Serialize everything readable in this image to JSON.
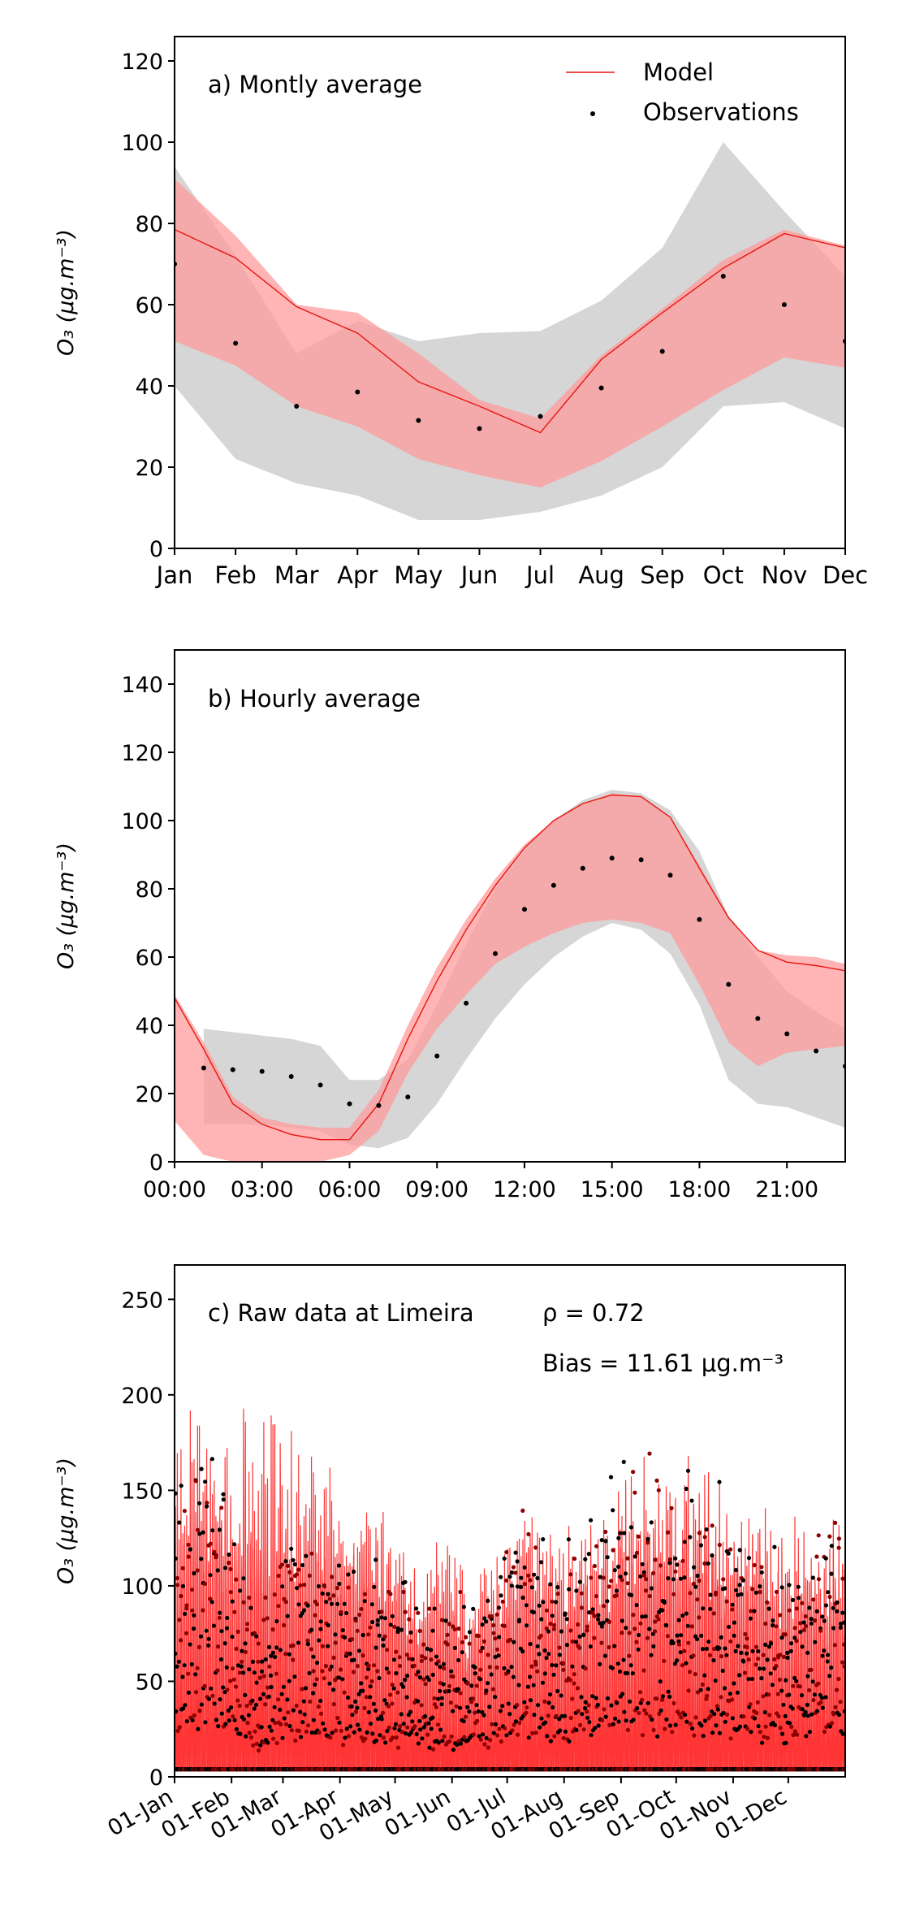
{
  "chart_data": [
    {
      "type": "line",
      "panel_label": "a) Montly average",
      "ylabel": "O₃ (μg.m⁻³)",
      "ylim": [
        0,
        126
      ],
      "yticks": [
        0,
        20,
        40,
        60,
        80,
        100,
        120
      ],
      "xlim": [
        0,
        11
      ],
      "categories": [
        "Jan",
        "Feb",
        "Mar",
        "Apr",
        "May",
        "Jun",
        "Jul",
        "Aug",
        "Sep",
        "Oct",
        "Nov",
        "Dec"
      ],
      "legend": {
        "position": "top-right",
        "items": [
          "Model",
          "Observations"
        ]
      },
      "grid": false,
      "series": [
        {
          "name": "Model",
          "kind": "line",
          "color": "#e8150f",
          "values": [
            78.5,
            71.5,
            59.5,
            53,
            41,
            35,
            28.5,
            46.5,
            58,
            69,
            77.5,
            74
          ]
        },
        {
          "name": "Observations",
          "kind": "scatter",
          "color": "#000000",
          "values": [
            70,
            50.5,
            35,
            38.5,
            31.5,
            29.5,
            32.5,
            39.5,
            48.5,
            67,
            60,
            51
          ]
        }
      ],
      "bands": [
        {
          "color": "#d6d6d6",
          "upper": [
            94,
            72,
            48,
            56,
            51,
            53,
            53.5,
            61,
            74,
            100,
            83,
            67
          ],
          "lower": [
            40,
            22,
            16,
            13,
            7,
            7,
            9,
            13,
            20,
            35,
            36,
            29.5
          ]
        },
        {
          "color": "#ff9898",
          "opacity": 0.72,
          "upper": [
            91,
            77,
            60,
            58,
            48,
            36.5,
            32,
            47.5,
            59,
            71,
            78.5,
            74.5
          ],
          "lower": [
            51,
            45,
            35,
            30,
            22,
            18,
            15,
            21.5,
            30,
            39,
            47,
            44.5
          ]
        }
      ]
    },
    {
      "type": "line",
      "panel_label": "b) Hourly average",
      "ylabel": "O₃ (μg.m⁻³)",
      "ylim": [
        0,
        150
      ],
      "yticks": [
        0,
        20,
        40,
        60,
        80,
        100,
        120,
        140
      ],
      "xlim": [
        0,
        23
      ],
      "xticks": [
        0,
        3,
        6,
        9,
        12,
        15,
        18,
        21
      ],
      "xticklabels": [
        "00:00",
        "03:00",
        "06:00",
        "09:00",
        "12:00",
        "15:00",
        "18:00",
        "21:00"
      ],
      "grid": false,
      "series": [
        {
          "name": "Model",
          "kind": "line",
          "color": "#e8150f",
          "x": [
            0,
            1,
            2,
            3,
            4,
            5,
            6,
            7,
            8,
            9,
            10,
            11,
            12,
            13,
            14,
            15,
            16,
            17,
            18,
            19,
            20,
            21,
            22,
            23
          ],
          "values": [
            48,
            33,
            17,
            11,
            8,
            6.5,
            6.5,
            17,
            36,
            53,
            68,
            81,
            92,
            100,
            105,
            107.5,
            107,
            101,
            86,
            71.5,
            62,
            58.5,
            57.5,
            56
          ]
        },
        {
          "name": "Observations",
          "kind": "scatter",
          "color": "#000000",
          "x": [
            1,
            2,
            3,
            4,
            5,
            6,
            7,
            8,
            9,
            10,
            11,
            12,
            13,
            14,
            15,
            16,
            17,
            18,
            19,
            20,
            21,
            22,
            23
          ],
          "values": [
            27.5,
            27,
            26.5,
            25,
            22.5,
            17,
            16.5,
            19,
            31,
            46.5,
            61,
            74,
            81,
            86,
            89,
            88.5,
            84,
            71,
            52,
            42,
            37.5,
            32.5,
            28
          ]
        }
      ],
      "bands": [
        {
          "color": "#d6d6d6",
          "x": [
            1,
            2,
            3,
            4,
            5,
            6,
            7,
            8,
            9,
            10,
            11,
            12,
            13,
            14,
            15,
            16,
            17,
            18,
            19,
            20,
            21,
            22,
            23
          ],
          "upper": [
            39,
            38,
            37,
            36,
            34,
            24,
            24,
            30,
            46,
            64,
            80,
            91,
            100,
            106,
            109,
            108,
            103,
            91,
            72,
            60,
            50,
            44,
            39
          ],
          "lower": [
            11,
            11,
            11,
            10,
            9,
            5,
            4,
            7,
            17,
            30,
            42,
            52,
            60,
            66,
            70,
            68,
            61,
            46,
            24,
            17,
            16,
            13,
            10
          ]
        },
        {
          "color": "#ff9898",
          "opacity": 0.72,
          "x": [
            0,
            1,
            2,
            3,
            4,
            5,
            6,
            7,
            8,
            9,
            10,
            11,
            12,
            13,
            14,
            15,
            16,
            17,
            18,
            19,
            20,
            21,
            22,
            23
          ],
          "upper": [
            49,
            35,
            19,
            13,
            11,
            10,
            10,
            21,
            40,
            57,
            71,
            83,
            93,
            100,
            105,
            108,
            107,
            101,
            87,
            72,
            62,
            60.5,
            60,
            58
          ],
          "lower": [
            12,
            2,
            0,
            0,
            0,
            0,
            2,
            9,
            26,
            39,
            49,
            58,
            63,
            67,
            70,
            71,
            70,
            67,
            52,
            35,
            28,
            32,
            33,
            34
          ]
        }
      ]
    },
    {
      "type": "line",
      "panel_label": "c) Raw data at Limeira",
      "rho_label": "ρ = 0.72",
      "bias_label": "Bias = 11.61 μg.m⁻³",
      "ylabel": "O₃ (μg.m⁻³)",
      "ylim": [
        0,
        268
      ],
      "yticks": [
        0,
        50,
        100,
        150,
        200,
        250
      ],
      "xlim": [
        0,
        365
      ],
      "xticks": [
        0,
        31,
        59,
        90,
        120,
        151,
        181,
        212,
        243,
        273,
        304,
        334
      ],
      "xticklabels": [
        "01-Jan",
        "01-Feb",
        "01-Mar",
        "01-Apr",
        "01-May",
        "01-Jun",
        "01-Jul",
        "01-Aug",
        "01-Sep",
        "01-Oct",
        "01-Nov",
        "01-Dec"
      ],
      "grid": false,
      "series": [
        {
          "name": "Model",
          "kind": "line",
          "color": "#ff1e1e",
          "description_daily_peak_envelope": [
            160,
            165,
            150,
            170,
            155,
            140,
            135,
            120,
            110,
            105,
            100,
            95,
            110,
            120,
            115,
            125,
            140,
            150,
            155,
            150,
            130,
            125,
            120,
            115
          ],
          "daily_peak_by_half_month": [
            160,
            165,
            150,
            170,
            155,
            140,
            135,
            120,
            110,
            105,
            100,
            95,
            110,
            120,
            115,
            125,
            140,
            150,
            155,
            150,
            130,
            125,
            120,
            115
          ]
        },
        {
          "name": "Observations",
          "kind": "scatter",
          "color": "#000000",
          "daily_peak_by_half_month": [
            150,
            185,
            140,
            80,
            135,
            125,
            115,
            110,
            100,
            90,
            85,
            90,
            125,
            130,
            110,
            140,
            155,
            160,
            150,
            145,
            130,
            120,
            110,
            140
          ]
        }
      ]
    }
  ]
}
